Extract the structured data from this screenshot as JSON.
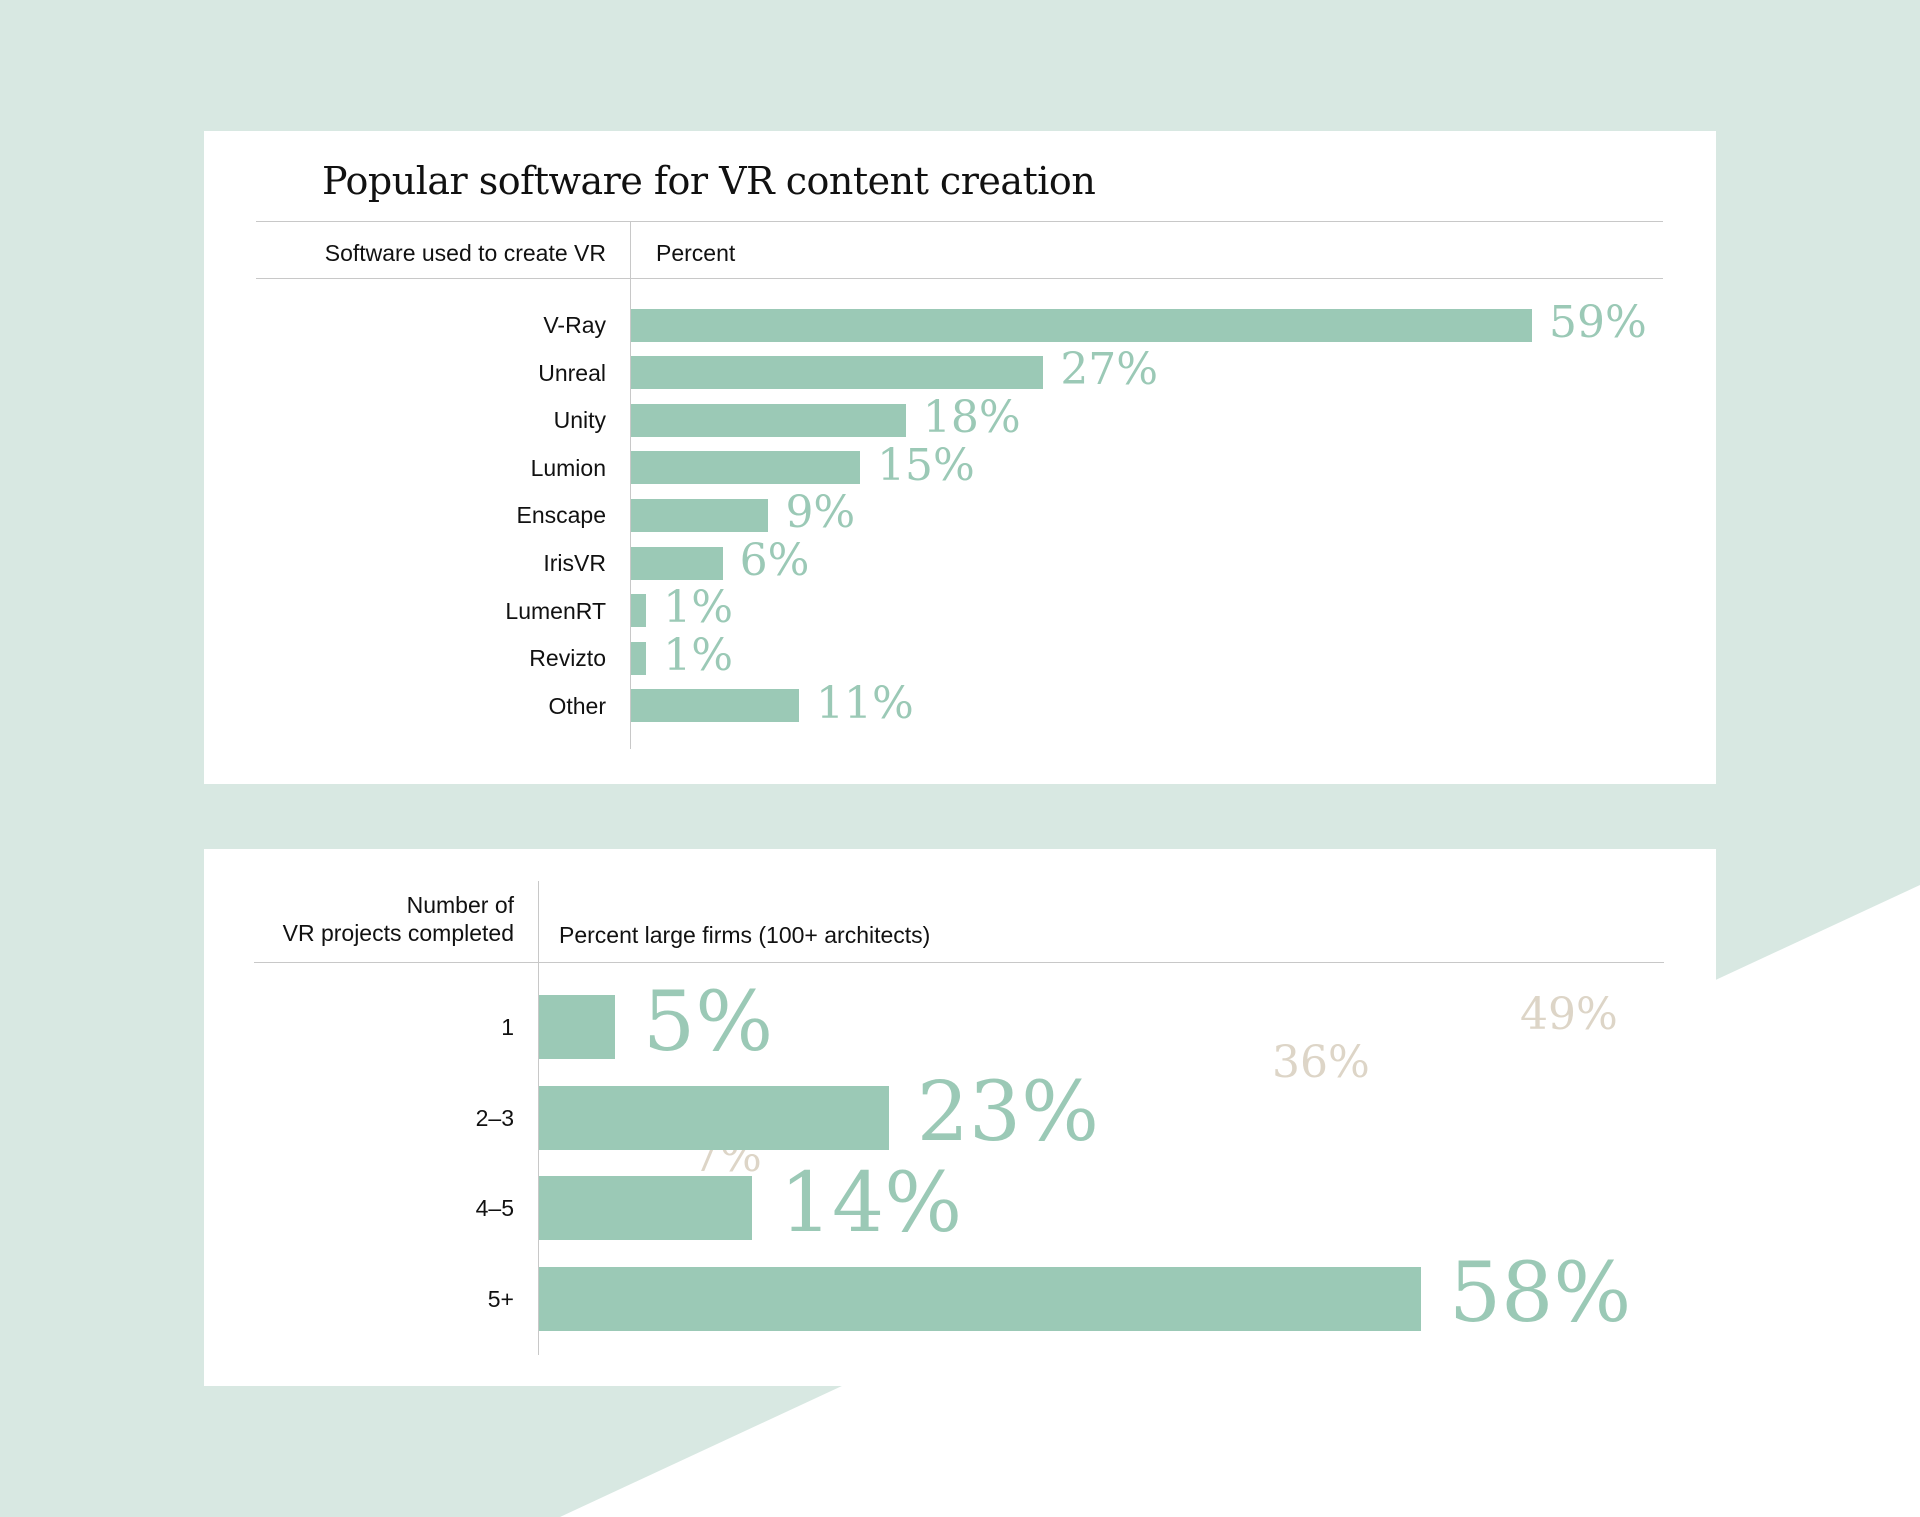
{
  "colors": {
    "background": "#d8e8e2",
    "card": "#ffffff",
    "bar": "#9bc9b6",
    "ghost_label": "#ddd5c7",
    "text": "#111111",
    "rule": "#c8c8c8"
  },
  "chart_data": [
    {
      "type": "bar",
      "orientation": "horizontal",
      "title": "Popular software for VR content creation",
      "category_header": "Software used to create VR",
      "value_header": "Percent",
      "unit": "%",
      "categories": [
        "V-Ray",
        "Unreal",
        "Unity",
        "Lumion",
        "Enscape",
        "IrisVR",
        "LumenRT",
        "Revizto",
        "Other"
      ],
      "values": [
        59,
        27,
        18,
        15,
        9,
        6,
        1,
        1,
        11
      ],
      "value_labels": [
        "59%",
        "27%",
        "18%",
        "15%",
        "9%",
        "6%",
        "1%",
        "1%",
        "11%"
      ],
      "xlim": [
        0,
        59
      ]
    },
    {
      "type": "bar",
      "orientation": "horizontal",
      "title": "",
      "category_header_lines": [
        "Number of",
        "VR projects completed"
      ],
      "value_header": "Percent large firms (100+ architects)",
      "unit": "%",
      "categories": [
        "1",
        "2–3",
        "4–5",
        "5+"
      ],
      "values": [
        5,
        23,
        14,
        58
      ],
      "value_labels": [
        "5%",
        "23%",
        "14%",
        "58%"
      ],
      "xlim": [
        0,
        58
      ],
      "background_labels": [
        "49%",
        "36%",
        "7%"
      ]
    }
  ]
}
